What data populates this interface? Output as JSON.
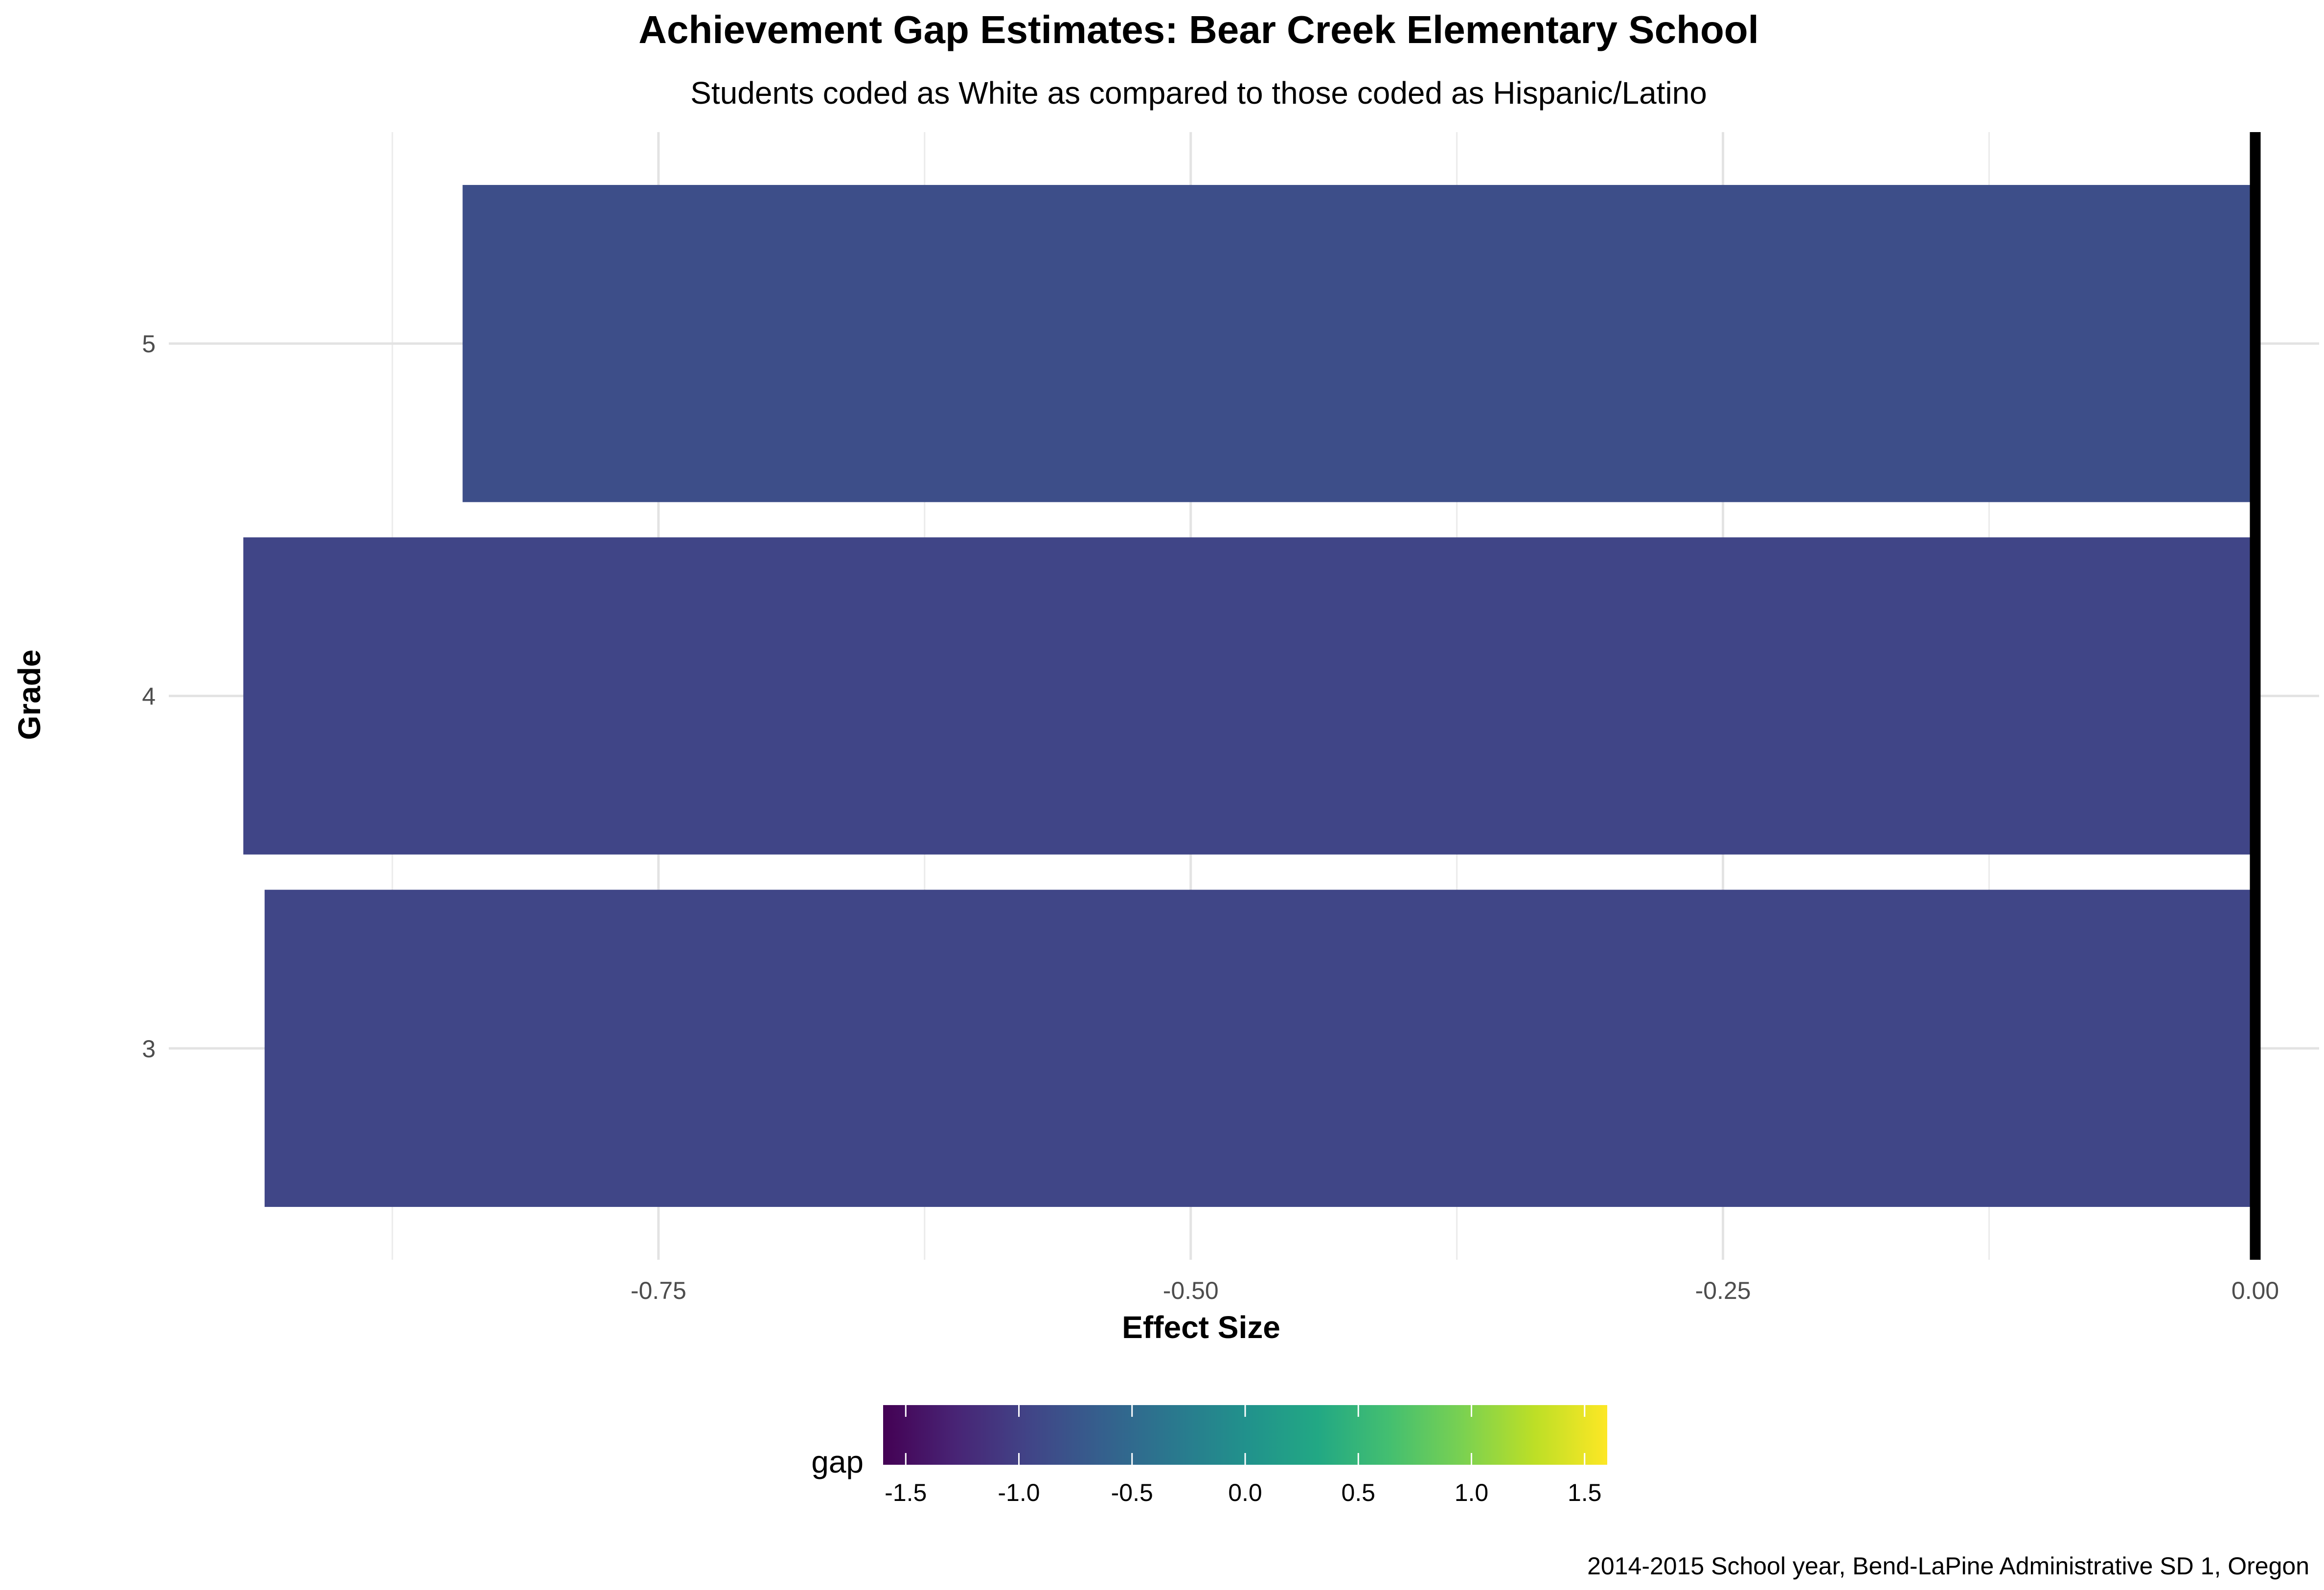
{
  "chart_data": {
    "type": "bar",
    "orientation": "horizontal",
    "title": "Achievement Gap Estimates: Bear Creek Elementary School",
    "subtitle": "Students coded as White as compared to those coded as Hispanic/Latino",
    "caption": "2014-2015 School year, Bend-LaPine Administrative SD 1, Oregon",
    "xlabel": "Effect Size",
    "ylabel": "Grade",
    "categories": [
      "3",
      "4",
      "5"
    ],
    "values": [
      -0.935,
      -0.945,
      -0.842
    ],
    "xlim": [
      -0.98,
      0.03
    ],
    "xticks": [
      -0.75,
      -0.5,
      -0.25,
      0
    ],
    "xtick_labels": [
      "-0.75",
      "-0.50",
      "-0.25",
      "0.00"
    ],
    "zero_line": true,
    "grid": true,
    "legend": {
      "title": "gap",
      "type": "colorbar",
      "palette": "viridis",
      "placement": "bottom",
      "range": [
        -1.6,
        1.6
      ],
      "ticks": [
        -1.5,
        -1.0,
        -0.5,
        0.0,
        0.5,
        1.0,
        1.5
      ],
      "tick_labels": [
        "-1.5",
        "-1.0",
        "-0.5",
        "0.0",
        "0.5",
        "1.0",
        "1.5"
      ]
    }
  }
}
